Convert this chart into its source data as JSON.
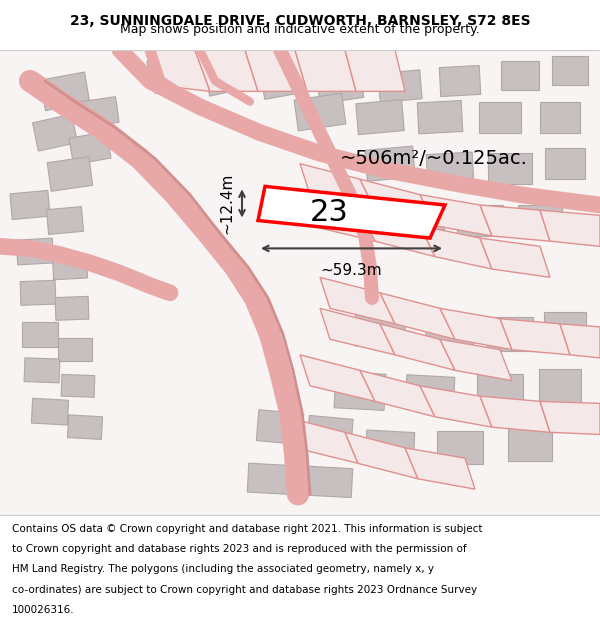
{
  "title_line1": "23, SUNNINGDALE DRIVE, CUDWORTH, BARNSLEY, S72 8ES",
  "title_line2": "Map shows position and indicative extent of the property.",
  "footer_text": "Contains OS data © Crown copyright and database right 2021. This information is subject to Crown copyright and database rights 2023 and is reproduced with the permission of HM Land Registry. The polygons (including the associated geometry, namely x, y co-ordinates) are subject to Crown copyright and database rights 2023 Ordnance Survey 100026316.",
  "area_label": "~506m²/~0.125ac.",
  "width_label": "~59.3m",
  "height_label": "~12.4m",
  "plot_number": "23",
  "bg_color": "#f5f0f0",
  "map_bg": "#ffffff",
  "highlight_color": "#ff0000",
  "road_color": "#e8a0a0",
  "building_color": "#d0c8c8",
  "dim_line_color": "#404040",
  "title_fontsize": 10,
  "subtitle_fontsize": 9,
  "footer_fontsize": 7.5
}
